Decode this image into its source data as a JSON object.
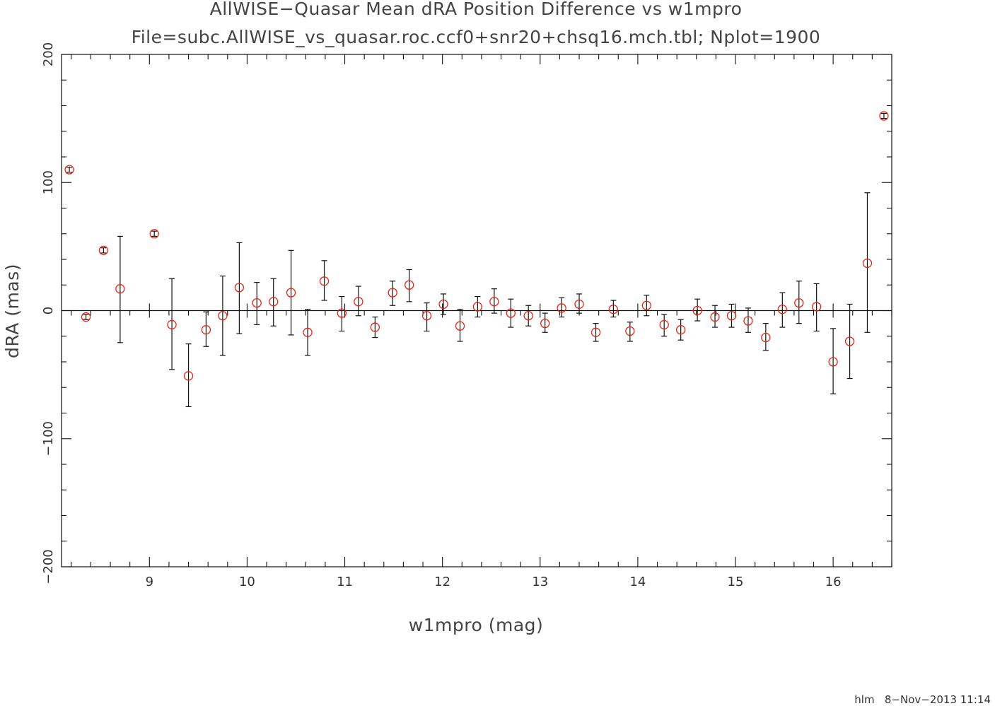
{
  "chart_data": {
    "type": "scatter",
    "title": "AllWISE−Quasar Mean dRA Position Difference vs w1mpro",
    "subtitle": "File=subc.AllWISE_vs_quasar.roc.ccf0+snr20+chsq16.mch.tbl; Nplot=1900",
    "xlabel": "w1mpro (mag)",
    "ylabel": "dRA (mas)",
    "xlim": [
      8.1,
      16.6
    ],
    "ylim": [
      -200,
      200
    ],
    "x_ticks": [
      {
        "value": 9,
        "label": "9"
      },
      {
        "value": 10,
        "label": "10"
      },
      {
        "value": 11,
        "label": "11"
      },
      {
        "value": 12,
        "label": "12"
      },
      {
        "value": 13,
        "label": "13"
      },
      {
        "value": 14,
        "label": "14"
      },
      {
        "value": 15,
        "label": "15"
      },
      {
        "value": 16,
        "label": "16"
      }
    ],
    "y_ticks": [
      {
        "value": -200,
        "label": "−200"
      },
      {
        "value": -100,
        "label": "−100"
      },
      {
        "value": 0,
        "label": "0"
      },
      {
        "value": 100,
        "label": "100"
      },
      {
        "value": 200,
        "label": "200"
      }
    ],
    "zero_line": true,
    "grid": false,
    "marker_color": "#e8220f",
    "errorbar_color": "#111111",
    "points": [
      {
        "x": 8.18,
        "y": 110,
        "lo": 108,
        "hi": 112
      },
      {
        "x": 8.35,
        "y": -5,
        "lo": -7,
        "hi": -3
      },
      {
        "x": 8.53,
        "y": 47,
        "lo": 45,
        "hi": 49
      },
      {
        "x": 8.7,
        "y": 17,
        "lo": -25,
        "hi": 58
      },
      {
        "x": 9.05,
        "y": 60,
        "lo": 58,
        "hi": 62
      },
      {
        "x": 9.23,
        "y": -11,
        "lo": -46,
        "hi": 25
      },
      {
        "x": 9.4,
        "y": -51,
        "lo": -75,
        "hi": -26
      },
      {
        "x": 9.58,
        "y": -15,
        "lo": -28,
        "hi": -1
      },
      {
        "x": 9.75,
        "y": -4,
        "lo": -35,
        "hi": 27
      },
      {
        "x": 9.92,
        "y": 18,
        "lo": -18,
        "hi": 53
      },
      {
        "x": 10.1,
        "y": 6,
        "lo": -11,
        "hi": 22
      },
      {
        "x": 10.27,
        "y": 7,
        "lo": -12,
        "hi": 25
      },
      {
        "x": 10.45,
        "y": 14,
        "lo": -19,
        "hi": 47
      },
      {
        "x": 10.62,
        "y": -17,
        "lo": -35,
        "hi": 1
      },
      {
        "x": 10.79,
        "y": 23,
        "lo": 8,
        "hi": 39
      },
      {
        "x": 10.97,
        "y": -2,
        "lo": -16,
        "hi": 11
      },
      {
        "x": 11.14,
        "y": 7,
        "lo": -4,
        "hi": 19
      },
      {
        "x": 11.31,
        "y": -13,
        "lo": -21,
        "hi": -5
      },
      {
        "x": 11.49,
        "y": 14,
        "lo": 4,
        "hi": 23
      },
      {
        "x": 11.66,
        "y": 20,
        "lo": 7,
        "hi": 32
      },
      {
        "x": 11.84,
        "y": -4,
        "lo": -16,
        "hi": 6
      },
      {
        "x": 12.01,
        "y": 5,
        "lo": -3,
        "hi": 13
      },
      {
        "x": 12.18,
        "y": -12,
        "lo": -24,
        "hi": 1
      },
      {
        "x": 12.36,
        "y": 3,
        "lo": -5,
        "hi": 11
      },
      {
        "x": 12.53,
        "y": 7,
        "lo": -2,
        "hi": 17
      },
      {
        "x": 12.7,
        "y": -2,
        "lo": -13,
        "hi": 9
      },
      {
        "x": 12.88,
        "y": -4,
        "lo": -12,
        "hi": 4
      },
      {
        "x": 13.05,
        "y": -10,
        "lo": -17,
        "hi": -2
      },
      {
        "x": 13.22,
        "y": 2,
        "lo": -5,
        "hi": 10
      },
      {
        "x": 13.4,
        "y": 5,
        "lo": -2,
        "hi": 13
      },
      {
        "x": 13.57,
        "y": -17,
        "lo": -24,
        "hi": -10
      },
      {
        "x": 13.75,
        "y": 1,
        "lo": -5,
        "hi": 8
      },
      {
        "x": 13.92,
        "y": -16,
        "lo": -24,
        "hi": -9
      },
      {
        "x": 14.09,
        "y": 4,
        "lo": -4,
        "hi": 12
      },
      {
        "x": 14.27,
        "y": -11,
        "lo": -20,
        "hi": -3
      },
      {
        "x": 14.44,
        "y": -15,
        "lo": -23,
        "hi": -7
      },
      {
        "x": 14.61,
        "y": 0,
        "lo": -8,
        "hi": 9
      },
      {
        "x": 14.79,
        "y": -5,
        "lo": -13,
        "hi": 4
      },
      {
        "x": 14.96,
        "y": -4,
        "lo": -13,
        "hi": 5
      },
      {
        "x": 15.13,
        "y": -8,
        "lo": -17,
        "hi": 2
      },
      {
        "x": 15.31,
        "y": -21,
        "lo": -31,
        "hi": -10
      },
      {
        "x": 15.48,
        "y": 1,
        "lo": -13,
        "hi": 14
      },
      {
        "x": 15.65,
        "y": 6,
        "lo": -10,
        "hi": 23
      },
      {
        "x": 15.83,
        "y": 3,
        "lo": -16,
        "hi": 21
      },
      {
        "x": 16.0,
        "y": -40,
        "lo": -65,
        "hi": -14
      },
      {
        "x": 16.17,
        "y": -24,
        "lo": -53,
        "hi": 5
      },
      {
        "x": 16.35,
        "y": 37,
        "lo": -17,
        "hi": 92
      },
      {
        "x": 16.52,
        "y": 152,
        "lo": 150,
        "hi": 154
      }
    ]
  },
  "footer": {
    "text": "hlm   8−Nov−2013 11:14"
  }
}
